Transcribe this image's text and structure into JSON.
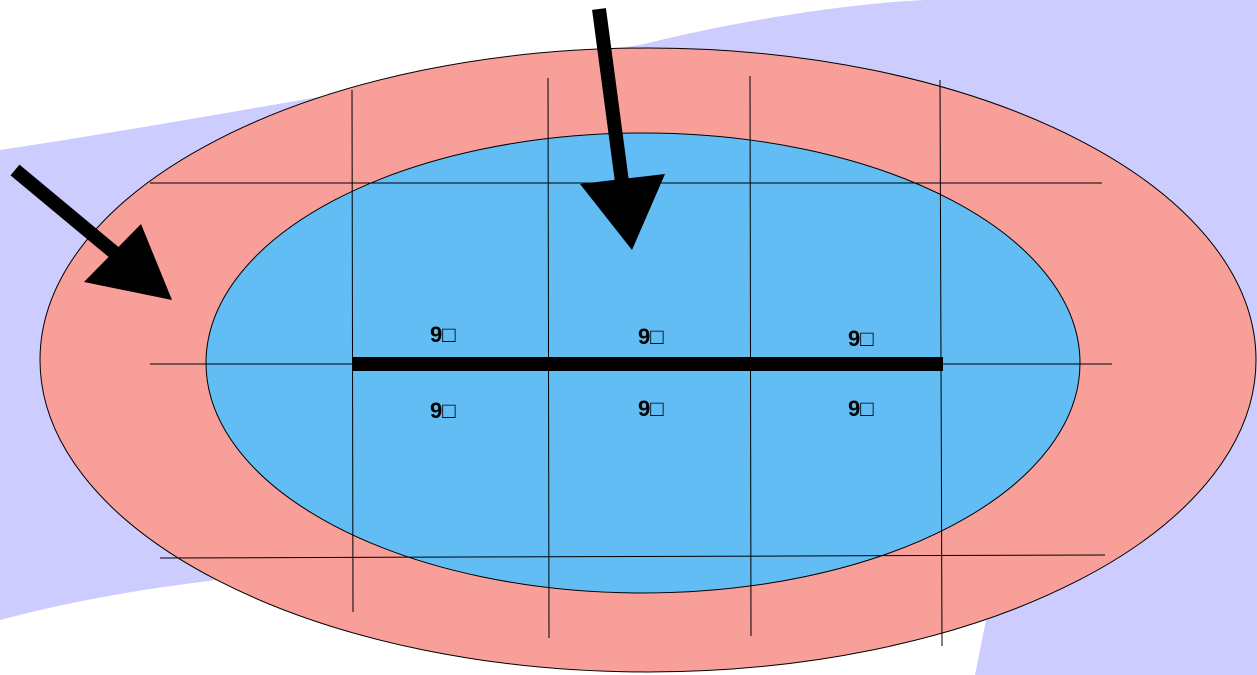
{
  "diagram": {
    "labels": {
      "upper_row": [
        "9□",
        "9□",
        "9□"
      ],
      "lower_row": [
        "9□",
        "9□",
        "9□"
      ]
    },
    "colors": {
      "background_band": "#ccccff",
      "outer_ellipse": "#f89f99",
      "inner_ellipse": "#61bdf3",
      "grid_lines": "#000000",
      "center_bar": "#000000",
      "arrows": "#000000"
    },
    "arrows": [
      {
        "name": "arrow-left-diagonal",
        "direction": "down-right"
      },
      {
        "name": "arrow-top-down",
        "direction": "down"
      }
    ]
  }
}
